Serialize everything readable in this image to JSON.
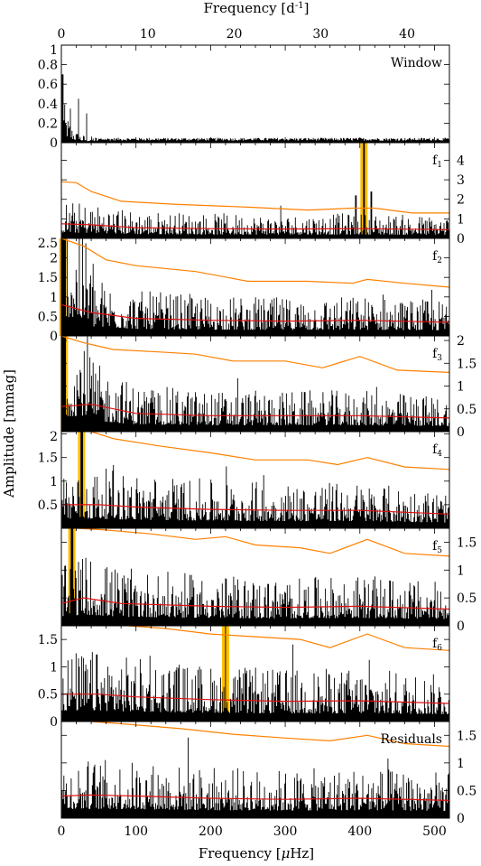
{
  "chart_data": {
    "type": "line",
    "top_xlabel": "Frequency [d",
    "top_xlabel_sup": "-1",
    "top_xlabel_end": "]",
    "bottom_xlabel": "Frequency [",
    "bottom_xlabel_mu": "μ",
    "bottom_xlabel_end": "Hz]",
    "ylabel": "Amplitude [mmag]",
    "x_uhz_range": [
      0,
      520
    ],
    "x_day_range": [
      0,
      44.9
    ],
    "bottom_ticks": [
      "0",
      "100",
      "200",
      "300",
      "400",
      "500"
    ],
    "top_ticks": [
      "0",
      "10",
      "20",
      "30",
      "40"
    ],
    "colors": {
      "trace": "#000000",
      "threshold": "#ff8000",
      "noise": "#e01010",
      "highlight": "#ffbf00"
    },
    "panels": [
      {
        "label": "Window",
        "sub": "",
        "axis_side": "left",
        "ylim": [
          0,
          1.0
        ],
        "ticks": [
          "0",
          "0.2",
          "0.4",
          "0.6",
          "0.8",
          "1"
        ],
        "tick_values": [
          0,
          0.2,
          0.4,
          0.6,
          0.8,
          1.0
        ],
        "highlight_uhz": null
      },
      {
        "label": "f",
        "sub": "1",
        "axis_side": "right",
        "ylim": [
          0,
          4.9
        ],
        "ticks": [
          "0",
          "1",
          "2",
          "3",
          "4"
        ],
        "tick_values": [
          0,
          1,
          2,
          3,
          4
        ],
        "highlight_uhz": 405.5,
        "threshold": [
          [
            0,
            2.9
          ],
          [
            20,
            2.85
          ],
          [
            40,
            2.4
          ],
          [
            80,
            1.9
          ],
          [
            150,
            1.75
          ],
          [
            250,
            1.6
          ],
          [
            330,
            1.45
          ],
          [
            390,
            1.55
          ],
          [
            420,
            1.55
          ],
          [
            470,
            1.3
          ],
          [
            520,
            1.3
          ]
        ],
        "noise": [
          [
            0,
            0.75
          ],
          [
            40,
            0.7
          ],
          [
            100,
            0.55
          ],
          [
            200,
            0.5
          ],
          [
            300,
            0.48
          ],
          [
            400,
            0.5
          ],
          [
            520,
            0.45
          ]
        ]
      },
      {
        "label": "f",
        "sub": "2",
        "axis_side": "left",
        "ylim": [
          0,
          2.5
        ],
        "ticks": [
          "0",
          "0.5",
          "1",
          "1.5",
          "2",
          "2.5"
        ],
        "tick_values": [
          0,
          0.5,
          1.0,
          1.5,
          2.0,
          2.5
        ],
        "highlight_uhz": 2,
        "threshold": [
          [
            0,
            2.5
          ],
          [
            30,
            2.3
          ],
          [
            60,
            1.95
          ],
          [
            100,
            1.8
          ],
          [
            180,
            1.65
          ],
          [
            250,
            1.4
          ],
          [
            330,
            1.4
          ],
          [
            390,
            1.35
          ],
          [
            410,
            1.45
          ],
          [
            460,
            1.35
          ],
          [
            520,
            1.25
          ]
        ],
        "noise": [
          [
            0,
            0.8
          ],
          [
            40,
            0.6
          ],
          [
            100,
            0.45
          ],
          [
            200,
            0.4
          ],
          [
            300,
            0.38
          ],
          [
            400,
            0.4
          ],
          [
            520,
            0.35
          ]
        ]
      },
      {
        "label": "f",
        "sub": "3",
        "axis_side": "right",
        "ylim": [
          0,
          2.1
        ],
        "ticks": [
          "0",
          "0.5",
          "1",
          "1.5",
          "2"
        ],
        "tick_values": [
          0,
          0.5,
          1.0,
          1.5,
          2.0
        ],
        "highlight_uhz": 4,
        "threshold": [
          [
            0,
            2.1
          ],
          [
            30,
            1.95
          ],
          [
            70,
            1.8
          ],
          [
            130,
            1.75
          ],
          [
            180,
            1.7
          ],
          [
            230,
            1.55
          ],
          [
            300,
            1.55
          ],
          [
            350,
            1.4
          ],
          [
            400,
            1.65
          ],
          [
            450,
            1.35
          ],
          [
            520,
            1.3
          ]
        ],
        "noise": [
          [
            0,
            0.55
          ],
          [
            40,
            0.6
          ],
          [
            100,
            0.4
          ],
          [
            200,
            0.35
          ],
          [
            300,
            0.35
          ],
          [
            400,
            0.35
          ],
          [
            520,
            0.3
          ]
        ]
      },
      {
        "label": "f",
        "sub": "4",
        "axis_side": "left",
        "ylim": [
          0,
          2.05
        ],
        "ticks": [
          "0.5",
          "1",
          "1.5",
          "2"
        ],
        "tick_values": [
          0.5,
          1.0,
          1.5,
          2.0
        ],
        "highlight_uhz": 27,
        "threshold": [
          [
            40,
            2.05
          ],
          [
            70,
            1.9
          ],
          [
            130,
            1.75
          ],
          [
            200,
            1.6
          ],
          [
            260,
            1.45
          ],
          [
            330,
            1.45
          ],
          [
            370,
            1.35
          ],
          [
            410,
            1.5
          ],
          [
            460,
            1.3
          ],
          [
            520,
            1.25
          ]
        ],
        "noise": [
          [
            0,
            0.5
          ],
          [
            50,
            0.5
          ],
          [
            100,
            0.45
          ],
          [
            200,
            0.4
          ],
          [
            300,
            0.38
          ],
          [
            400,
            0.38
          ],
          [
            520,
            0.3
          ]
        ]
      },
      {
        "label": "f",
        "sub": "5",
        "axis_side": "right",
        "ylim": [
          0,
          1.75
        ],
        "ticks": [
          "0",
          "0.5",
          "1",
          "1.5"
        ],
        "tick_values": [
          0,
          0.5,
          1.0,
          1.5
        ],
        "highlight_uhz": 14,
        "threshold": [
          [
            20,
            1.75
          ],
          [
            60,
            1.72
          ],
          [
            120,
            1.65
          ],
          [
            180,
            1.55
          ],
          [
            220,
            1.6
          ],
          [
            260,
            1.45
          ],
          [
            320,
            1.4
          ],
          [
            360,
            1.3
          ],
          [
            410,
            1.55
          ],
          [
            460,
            1.3
          ],
          [
            520,
            1.25
          ]
        ],
        "noise": [
          [
            0,
            0.4
          ],
          [
            30,
            0.5
          ],
          [
            80,
            0.4
          ],
          [
            200,
            0.35
          ],
          [
            300,
            0.33
          ],
          [
            400,
            0.35
          ],
          [
            520,
            0.3
          ]
        ]
      },
      {
        "label": "f",
        "sub": "6",
        "axis_side": "left",
        "ylim": [
          0,
          1.75
        ],
        "ticks": [
          "0",
          "0.5",
          "1",
          "1.5"
        ],
        "tick_values": [
          0,
          0.5,
          1.0,
          1.5
        ],
        "highlight_uhz": 220,
        "threshold": [
          [
            90,
            1.75
          ],
          [
            140,
            1.7
          ],
          [
            200,
            1.6
          ],
          [
            260,
            1.55
          ],
          [
            320,
            1.5
          ],
          [
            360,
            1.35
          ],
          [
            410,
            1.6
          ],
          [
            460,
            1.35
          ],
          [
            520,
            1.3
          ]
        ],
        "noise": [
          [
            0,
            0.5
          ],
          [
            50,
            0.5
          ],
          [
            100,
            0.45
          ],
          [
            200,
            0.4
          ],
          [
            300,
            0.37
          ],
          [
            400,
            0.38
          ],
          [
            520,
            0.33
          ]
        ]
      },
      {
        "label": "Residuals",
        "sub": "",
        "axis_side": "right",
        "ylim": [
          0,
          1.75
        ],
        "ticks": [
          "0",
          "0.5",
          "1",
          "1.5"
        ],
        "tick_values": [
          0,
          0.5,
          1.0,
          1.5
        ],
        "highlight_uhz": null,
        "threshold": [
          [
            40,
            1.75
          ],
          [
            90,
            1.7
          ],
          [
            160,
            1.62
          ],
          [
            230,
            1.52
          ],
          [
            300,
            1.45
          ],
          [
            360,
            1.4
          ],
          [
            410,
            1.5
          ],
          [
            460,
            1.35
          ],
          [
            520,
            1.3
          ]
        ],
        "noise": [
          [
            0,
            0.4
          ],
          [
            40,
            0.42
          ],
          [
            100,
            0.4
          ],
          [
            200,
            0.36
          ],
          [
            300,
            0.34
          ],
          [
            400,
            0.36
          ],
          [
            520,
            0.32
          ]
        ]
      }
    ]
  }
}
